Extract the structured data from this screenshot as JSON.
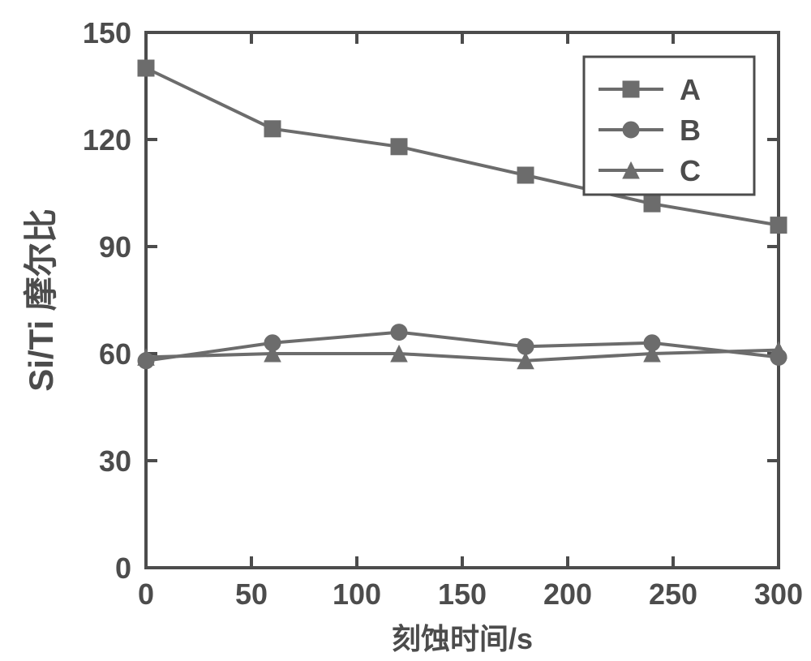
{
  "chart": {
    "type": "line",
    "plot_background": "#ffffff",
    "axis_color": "#4c4c4c",
    "axis_stroke_width": 4,
    "tick_length_major": 14,
    "xlim": [
      0,
      300
    ],
    "ylim": [
      0,
      150
    ],
    "x_ticks": [
      0,
      50,
      100,
      150,
      200,
      250,
      300
    ],
    "y_ticks": [
      0,
      30,
      60,
      90,
      120,
      150
    ],
    "x_title": "刻蚀时间/s",
    "y_title_prefix": "Si/Ti",
    "y_title_suffix": " 摩尔比",
    "tick_label_fontsize": 36,
    "axis_title_fontsize_x": 36,
    "axis_title_fontsize_y": 42,
    "series_color": "#6c6c6c",
    "line_width": 4,
    "marker_size": 20,
    "legend": {
      "border_color": "#4c4c4c",
      "border_width": 3,
      "background": "#ffffff",
      "position": "top-right",
      "font_size": 36
    },
    "series": [
      {
        "name": "A",
        "marker": "square",
        "x": [
          0,
          60,
          120,
          180,
          240,
          300
        ],
        "y": [
          140,
          123,
          118,
          110,
          102,
          96
        ]
      },
      {
        "name": "B",
        "marker": "circle",
        "x": [
          0,
          60,
          120,
          180,
          240,
          300
        ],
        "y": [
          58,
          63,
          66,
          62,
          63,
          59
        ]
      },
      {
        "name": "C",
        "marker": "triangle",
        "x": [
          0,
          60,
          120,
          180,
          240,
          300
        ],
        "y": [
          59,
          60,
          60,
          58,
          60,
          61
        ]
      }
    ]
  }
}
